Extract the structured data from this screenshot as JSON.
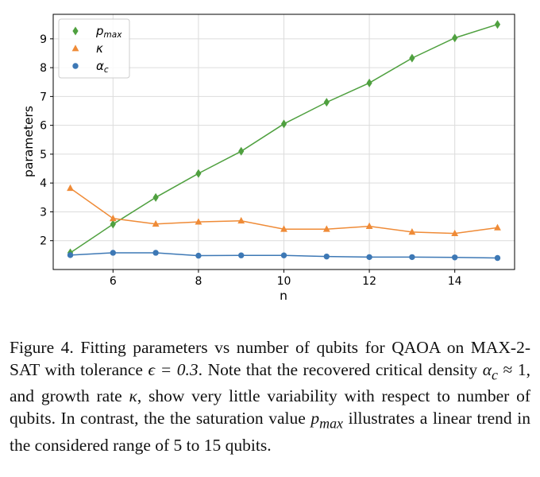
{
  "chart_data": {
    "type": "line",
    "xlabel": "n",
    "ylabel": "parameters",
    "xlim": [
      4.6,
      15.4
    ],
    "ylim": [
      1.0,
      9.85
    ],
    "x_ticks": [
      6,
      8,
      10,
      12,
      14
    ],
    "y_ticks": [
      2,
      3,
      4,
      5,
      6,
      7,
      8,
      9
    ],
    "grid": true,
    "legend_position": "upper-left",
    "x": [
      5,
      6,
      7,
      8,
      9,
      10,
      11,
      12,
      13,
      14,
      15
    ],
    "series": [
      {
        "name": "p",
        "name_sub": "max",
        "marker": "diamond",
        "color": "#4fa03f",
        "values": [
          1.58,
          2.57,
          3.5,
          4.33,
          5.1,
          6.05,
          6.8,
          7.47,
          8.33,
          9.03,
          9.5
        ]
      },
      {
        "name": "κ",
        "name_sub": "",
        "marker": "triangle",
        "color": "#ef8b37",
        "values": [
          3.82,
          2.77,
          2.58,
          2.65,
          2.69,
          2.4,
          2.4,
          2.5,
          2.3,
          2.25,
          2.45
        ]
      },
      {
        "name": "α",
        "name_sub": "c",
        "marker": "circle",
        "color": "#3d78b5",
        "values": [
          1.5,
          1.58,
          1.58,
          1.48,
          1.49,
          1.49,
          1.45,
          1.43,
          1.43,
          1.42,
          1.4
        ]
      }
    ]
  },
  "caption": {
    "t1": "Figure 4. Fitting parameters vs number of qubits for QAOA on MAX-2-SAT with tolerance ",
    "m1": "ϵ = 0.3",
    "t2": ". Note that the recovered critical density ",
    "m2": "α",
    "m2sub": "c",
    "t3": " ≈ 1, and growth rate ",
    "m3": "κ",
    "t4": ", show very little variability with respect to number of qubits. In contrast, the the saturation value ",
    "m4": "p",
    "m4sub": "max",
    "t5": " illustrates a linear trend in the considered range of 5 to 15 qubits."
  }
}
